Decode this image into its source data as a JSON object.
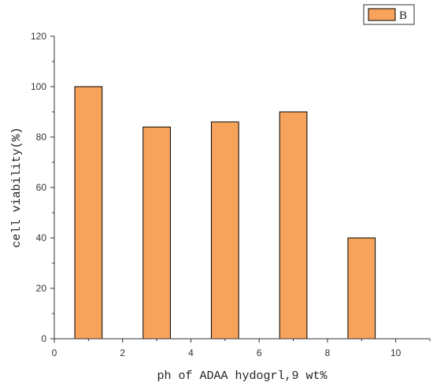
{
  "chart_data": {
    "type": "bar",
    "x": [
      1,
      3,
      5,
      7,
      9
    ],
    "bar_width": 0.8,
    "series": [
      {
        "name": "B",
        "values": [
          100,
          84,
          86,
          90,
          40
        ],
        "color": "#f7a35c"
      }
    ],
    "xlabel": "ph of ADAA hydogrl,9 wt%",
    "ylabel": "cell viability(%)",
    "xlim": [
      0,
      11
    ],
    "ylim": [
      0,
      120
    ],
    "xticks": [
      0,
      2,
      4,
      6,
      8,
      10
    ],
    "yticks": [
      0,
      20,
      40,
      60,
      80,
      100,
      120
    ],
    "grid": false,
    "legend_position": "top-right",
    "bar_stroke": "#000000",
    "axis_color": "#333333"
  }
}
